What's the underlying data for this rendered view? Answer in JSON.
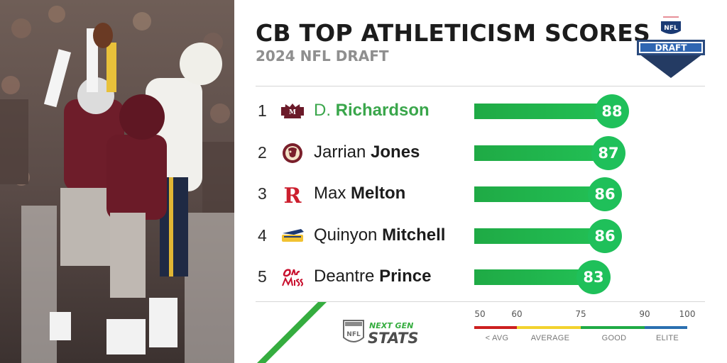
{
  "header": {
    "title": "CB TOP ATHLETICISM SCORES",
    "subtitle": "2024 NFL DRAFT",
    "draft_logo_text": "DRAFT",
    "nfl_text": "NFL"
  },
  "colors": {
    "bar": "#1faa45",
    "bubble": "#1fc05a",
    "highlight_name": "#3aa64b",
    "below_avg": "#cc1f1f",
    "average": "#f2d22e",
    "good": "#1faa45",
    "elite": "#2a6fb0"
  },
  "chart_data": {
    "type": "bar",
    "title": "CB TOP ATHLETICISM SCORES",
    "subtitle": "2024 NFL DRAFT",
    "xlim": [
      50,
      100
    ],
    "rows": [
      {
        "rank": "1",
        "first": "D.",
        "last": "Richardson",
        "score": 88,
        "team_icon": "mississippi-state-logo-icon",
        "highlight": true
      },
      {
        "rank": "2",
        "first": "Jarrian",
        "last": "Jones",
        "score": 87,
        "team_icon": "florida-state-logo-icon",
        "highlight": false
      },
      {
        "rank": "3",
        "first": "Max",
        "last": "Melton",
        "score": 86,
        "team_icon": "rutgers-logo-icon",
        "highlight": false
      },
      {
        "rank": "4",
        "first": "Quinyon",
        "last": "Mitchell",
        "score": 86,
        "team_icon": "toledo-logo-icon",
        "highlight": false
      },
      {
        "rank": "5",
        "first": "Deantre",
        "last": "Prince",
        "score": 83,
        "team_icon": "ole-miss-logo-icon",
        "highlight": false
      }
    ],
    "scale": {
      "ticks": [
        "50",
        "60",
        "75",
        "90",
        "100"
      ],
      "tick_values": [
        50,
        60,
        75,
        90,
        100
      ],
      "bands": [
        {
          "label": "< AVG",
          "from": 50,
          "to": 60,
          "color": "#cc1f1f"
        },
        {
          "label": "AVERAGE",
          "from": 60,
          "to": 75,
          "color": "#f2d22e"
        },
        {
          "label": "GOOD",
          "from": 75,
          "to": 90,
          "color": "#1faa45"
        },
        {
          "label": "ELITE",
          "from": 90,
          "to": 100,
          "color": "#2a6fb0"
        }
      ]
    }
  },
  "footer": {
    "brand_line1": "NEXT GEN",
    "brand_line2": "STATS"
  }
}
